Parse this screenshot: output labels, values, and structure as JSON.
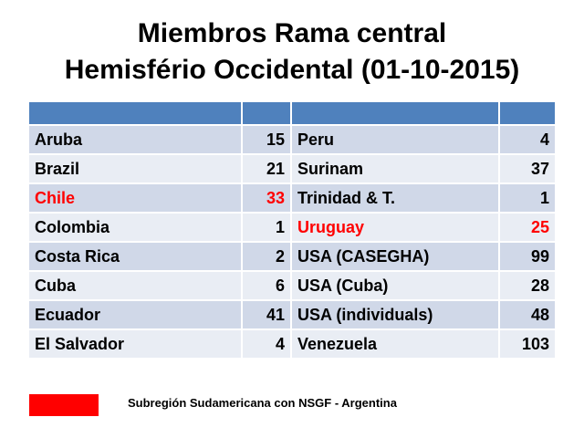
{
  "title": [
    "Miembros Rama central",
    "Hemisfério Occidental (01-10-2015)"
  ],
  "table": {
    "header_color": "#4f81bd",
    "row_colors": [
      "#d0d8e8",
      "#e9edf4"
    ],
    "rows": [
      [
        {
          "name": "Aruba",
          "count": 15
        },
        {
          "name": "Peru",
          "count": 4
        }
      ],
      [
        {
          "name": "Brazil",
          "count": 21
        },
        {
          "name": "Surinam",
          "count": 37
        }
      ],
      [
        {
          "name": "Chile",
          "count": 33,
          "color": "#ff0000"
        },
        {
          "name": "Trinidad & T.",
          "count": 1
        }
      ],
      [
        {
          "name": "Colombia",
          "count": 1
        },
        {
          "name": "Uruguay",
          "count": 25,
          "color": "#ff0000"
        }
      ],
      [
        {
          "name": "Costa Rica",
          "count": 2
        },
        {
          "name": "USA (CASEGHA)",
          "count": 99
        }
      ],
      [
        {
          "name": "Cuba",
          "count": 6
        },
        {
          "name": "USA (Cuba)",
          "count": 28
        }
      ],
      [
        {
          "name": "Ecuador",
          "count": 41
        },
        {
          "name": "USA (individuals)",
          "count": 48
        }
      ],
      [
        {
          "name": "El Salvador",
          "count": 4
        },
        {
          "name": "Venezuela",
          "count": 103
        }
      ]
    ]
  },
  "legend": {
    "color": "#ff0000",
    "text": "Subregión Sudamericana con NSGF - Argentina"
  }
}
